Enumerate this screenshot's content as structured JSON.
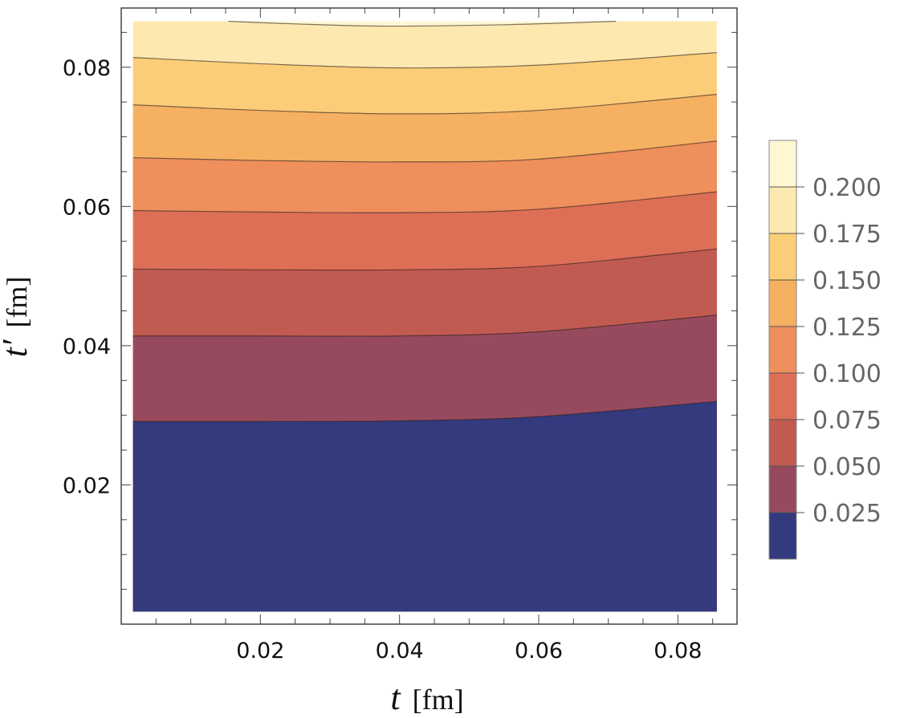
{
  "chart_data": {
    "type": "contour",
    "title": "",
    "xlabel": {
      "symbol": "t",
      "unit": "[fm]"
    },
    "ylabel": {
      "symbol": "t′",
      "unit": "[fm]"
    },
    "xlim": [
      0,
      0.0885
    ],
    "ylim": [
      0,
      0.0885
    ],
    "data_range": {
      "x": [
        0.0017,
        0.0856
      ],
      "y": [
        0.0018,
        0.0866
      ]
    },
    "x_ticks": [
      "0.02",
      "0.04",
      "0.06",
      "0.08"
    ],
    "y_ticks": [
      "0.02",
      "0.04",
      "0.06",
      "0.08"
    ],
    "minor_tick_step": 0.005,
    "legend": {
      "placement": "right",
      "labels": [
        "0.200",
        "0.175",
        "0.150",
        "0.125",
        "0.100",
        "0.075",
        "0.050",
        "0.025"
      ],
      "band_colors": [
        "#fff6d2",
        "#fde8b0",
        "#fbcd78",
        "#f6b062",
        "#ee8f5c",
        "#de6f57",
        "#c15b52",
        "#974a5e",
        "#343a7e"
      ]
    },
    "contours": [
      {
        "level": 0.2,
        "points": [
          [
            0.0154,
            0.0866
          ],
          [
            0.0255,
            0.0862
          ],
          [
            0.0378,
            0.0859
          ],
          [
            0.055,
            0.0861
          ],
          [
            0.0711,
            0.0866
          ]
        ]
      },
      {
        "level": 0.175,
        "points": [
          [
            0.0017,
            0.0814
          ],
          [
            0.02,
            0.0805
          ],
          [
            0.04,
            0.0799
          ],
          [
            0.06,
            0.0803
          ],
          [
            0.0856,
            0.0821
          ]
        ]
      },
      {
        "level": 0.15,
        "points": [
          [
            0.0017,
            0.0746
          ],
          [
            0.02,
            0.0738
          ],
          [
            0.04,
            0.0733
          ],
          [
            0.06,
            0.0738
          ],
          [
            0.0856,
            0.0761
          ]
        ]
      },
      {
        "level": 0.125,
        "points": [
          [
            0.0017,
            0.067
          ],
          [
            0.02,
            0.0666
          ],
          [
            0.04,
            0.0664
          ],
          [
            0.06,
            0.0668
          ],
          [
            0.0856,
            0.0694
          ]
        ]
      },
      {
        "level": 0.1,
        "points": [
          [
            0.0017,
            0.0594
          ],
          [
            0.02,
            0.0592
          ],
          [
            0.04,
            0.0591
          ],
          [
            0.06,
            0.0596
          ],
          [
            0.0856,
            0.0621
          ]
        ]
      },
      {
        "level": 0.075,
        "points": [
          [
            0.0017,
            0.051
          ],
          [
            0.02,
            0.0509
          ],
          [
            0.04,
            0.0509
          ],
          [
            0.06,
            0.0514
          ],
          [
            0.0856,
            0.0539
          ]
        ]
      },
      {
        "level": 0.05,
        "points": [
          [
            0.0017,
            0.0414
          ],
          [
            0.02,
            0.0414
          ],
          [
            0.04,
            0.0414
          ],
          [
            0.06,
            0.042
          ],
          [
            0.0856,
            0.0444
          ]
        ]
      },
      {
        "level": 0.025,
        "points": [
          [
            0.0017,
            0.0291
          ],
          [
            0.02,
            0.0291
          ],
          [
            0.04,
            0.0292
          ],
          [
            0.06,
            0.0298
          ],
          [
            0.0856,
            0.032
          ]
        ]
      }
    ]
  }
}
